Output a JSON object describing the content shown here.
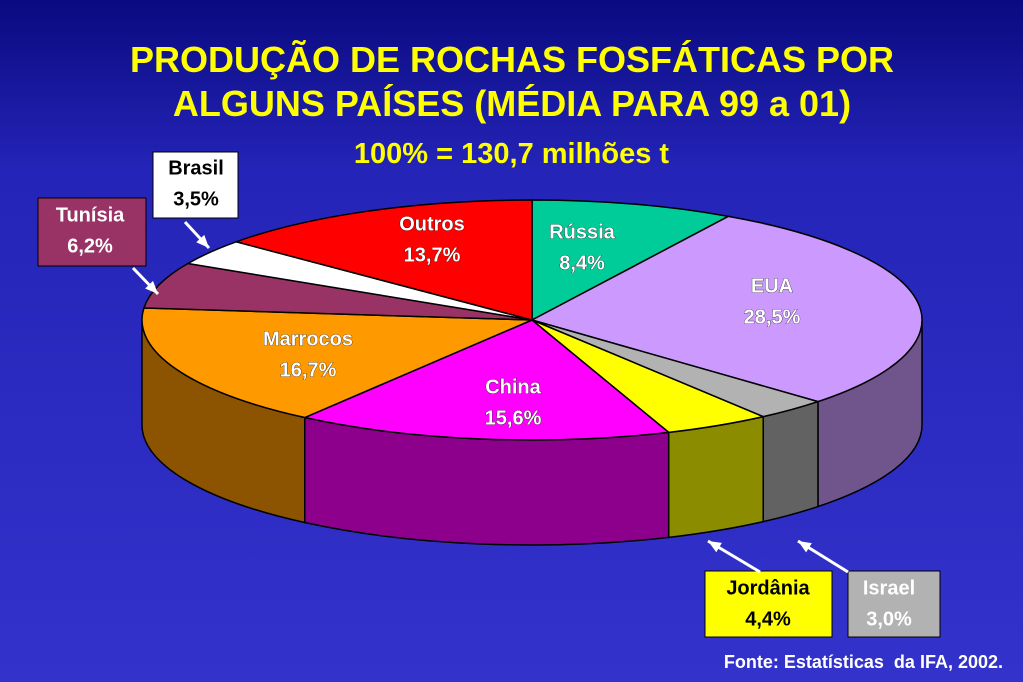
{
  "chart_data": {
    "type": "pie",
    "title": "PRODUÇÃO DE ROCHAS FOSFÁTICAS POR ALGUNS PAÍSES (MÉDIA PARA 99 a 01)",
    "subtitle": "100% = 130,7 milhões t",
    "categories": [
      "Rússia",
      "EUA",
      "Israel",
      "Jordânia",
      "China",
      "Marrocos",
      "Tunísia",
      "Brasil",
      "Outros"
    ],
    "values": [
      8.4,
      28.5,
      3.0,
      4.4,
      15.6,
      16.7,
      6.2,
      3.5,
      13.7
    ],
    "value_labels": [
      "8,4%",
      "28,5%",
      "3,0%",
      "4,4%",
      "15,6%",
      "16,7%",
      "6,2%",
      "3,5%",
      "13,7%"
    ],
    "colors": [
      "#00cc99",
      "#cc99ff",
      "#b2b2b2",
      "#ffff00",
      "#ff00ff",
      "#ff9900",
      "#993366",
      "#ffffff",
      "#ff0000"
    ],
    "source": "Fonte: Estatísticas  da IFA, 2002."
  }
}
